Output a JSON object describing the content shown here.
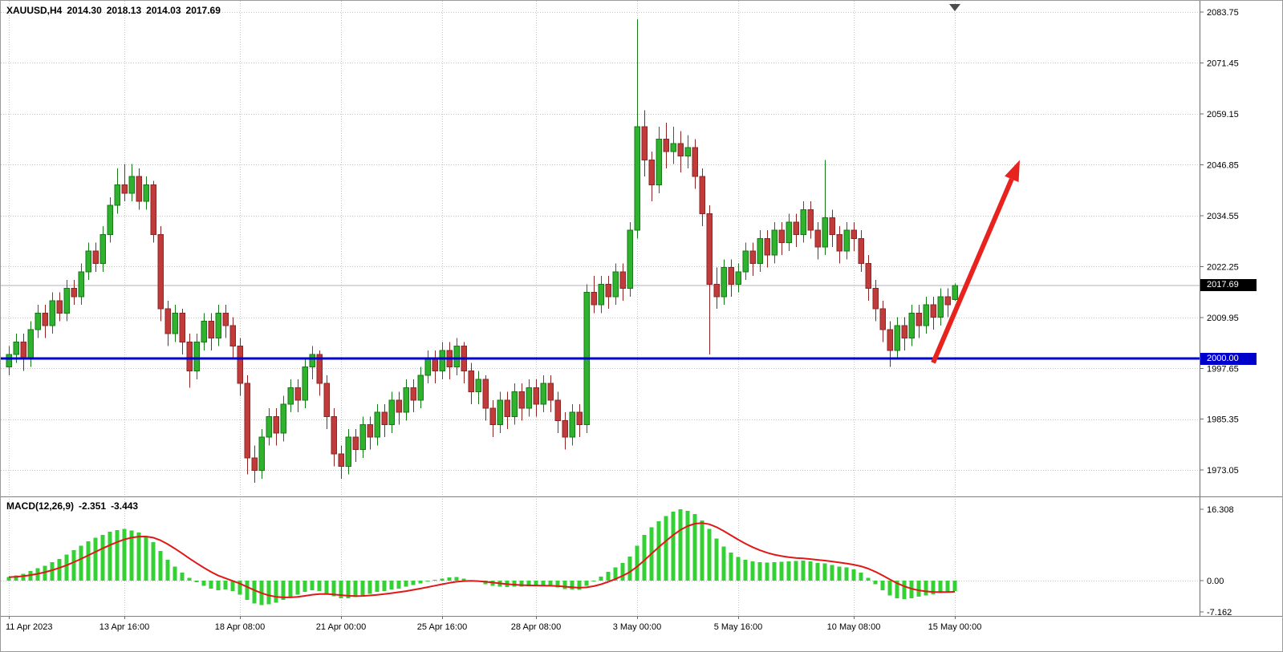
{
  "header": {
    "symbol_period": "XAUUSD,H4",
    "open": "2014.30",
    "high": "2018.13",
    "low": "2014.03",
    "close": "2017.69"
  },
  "macd": {
    "name": "MACD(12,26,9)",
    "value_main": "-2.351",
    "value_signal": "-3.443"
  },
  "price_axis": {
    "current_price": "2017.69",
    "hline_price": "2000.00"
  },
  "colors": {
    "bull": "#2fb32f",
    "bull_border": "#157a15",
    "bear": "#c13b3b",
    "bear_border": "#8e2424",
    "grid": "#c4c4c4",
    "axis_line": "#6b6b6b",
    "separator": "#808080",
    "support_line": "#0000cd",
    "arrow": "#e8231e",
    "macd_bar": "#33d133",
    "macd_signal": "#e01818",
    "badge_current_bg": "#000000",
    "badge_hline_bg": "#0000cd",
    "bid_line": "#b3b3bb",
    "shift_marker": "#4d4d4d",
    "text": "#000000"
  },
  "chart_data": {
    "type": "candlestick",
    "symbol": "XAUUSD",
    "timeframe": "H4",
    "title": "XAUUSD,H4 2014.30 2018.13 2014.03 2017.69",
    "current_ohlc": {
      "open": 2014.3,
      "high": 2018.13,
      "low": 2014.03,
      "close": 2017.69
    },
    "current_price_value": 2017.69,
    "support_line_price": 2000.0,
    "price_axis_top": 2083.75,
    "price_axis_step": 12.3,
    "price_ticks": [
      "2083.75",
      "2071.45",
      "2059.15",
      "2046.85",
      "2034.55",
      "2022.25",
      "2009.95",
      "1997.65",
      "1985.35",
      "1973.05"
    ],
    "time_labels": [
      "11 Apr 2023",
      "13 Apr 16:00",
      "18 Apr 08:00",
      "21 Apr 00:00",
      "25 Apr 16:00",
      "28 Apr 08:00",
      "3 May 00:00",
      "5 May 16:00",
      "10 May 08:00",
      "15 May 00:00"
    ],
    "time_label_indices": [
      0,
      16,
      32,
      46,
      60,
      73,
      87,
      101,
      117,
      131
    ],
    "macd_axis_ticks": [
      "16.308",
      "0.00",
      "-7.162"
    ],
    "macd_axis_values": [
      16.308,
      0,
      -7.162
    ],
    "macd_current": {
      "main": -2.351,
      "signal": -3.443
    },
    "arrow": {
      "from_index": 128,
      "from_price": 1999.0,
      "to_index": 140,
      "to_price": 2048.0
    },
    "ohlc": [
      [
        1998,
        2003,
        1996,
        2001
      ],
      [
        2001,
        2006,
        1999,
        2004
      ],
      [
        2004,
        2006,
        1997,
        2000
      ],
      [
        2000,
        2009,
        1998,
        2007
      ],
      [
        2007,
        2013,
        2005,
        2011
      ],
      [
        2011,
        2013,
        2005,
        2008
      ],
      [
        2008,
        2016,
        2006,
        2014
      ],
      [
        2014,
        2016,
        2009,
        2011
      ],
      [
        2011,
        2019,
        2009,
        2017
      ],
      [
        2017,
        2019,
        2013,
        2015
      ],
      [
        2015,
        2023,
        2013,
        2021
      ],
      [
        2021,
        2028,
        2019,
        2026
      ],
      [
        2026,
        2028,
        2021,
        2023
      ],
      [
        2023,
        2032,
        2021,
        2030
      ],
      [
        2030,
        2039,
        2028,
        2037
      ],
      [
        2037,
        2046,
        2035,
        2042
      ],
      [
        2042,
        2047,
        2038,
        2040
      ],
      [
        2040,
        2047,
        2038,
        2044
      ],
      [
        2044,
        2046,
        2036,
        2038
      ],
      [
        2038,
        2044,
        2036,
        2042
      ],
      [
        2042,
        2043,
        2028,
        2030
      ],
      [
        2030,
        2032,
        2009,
        2012
      ],
      [
        2012,
        2014,
        2003,
        2006
      ],
      [
        2006,
        2013,
        2004,
        2011
      ],
      [
        2011,
        2012,
        2001,
        2004
      ],
      [
        2004,
        2006,
        1993,
        1997
      ],
      [
        1997,
        2006,
        1995,
        2004
      ],
      [
        2004,
        2011,
        2002,
        2009
      ],
      [
        2009,
        2011,
        2002,
        2005
      ],
      [
        2005,
        2013,
        2003,
        2011
      ],
      [
        2011,
        2013,
        2005,
        2008
      ],
      [
        2008,
        2010,
        2000,
        2003
      ],
      [
        2003,
        2005,
        1991,
        1994
      ],
      [
        1994,
        1996,
        1972,
        1976
      ],
      [
        1976,
        1979,
        1970,
        1973
      ],
      [
        1973,
        1983,
        1971,
        1981
      ],
      [
        1981,
        1988,
        1979,
        1986
      ],
      [
        1986,
        1988,
        1979,
        1982
      ],
      [
        1982,
        1991,
        1980,
        1989
      ],
      [
        1989,
        1995,
        1987,
        1993
      ],
      [
        1993,
        1995,
        1987,
        1990
      ],
      [
        1990,
        2000,
        1988,
        1998
      ],
      [
        1998,
        2003,
        1995,
        2001
      ],
      [
        2001,
        2002,
        1991,
        1994
      ],
      [
        1994,
        1996,
        1983,
        1986
      ],
      [
        1986,
        1988,
        1974,
        1977
      ],
      [
        1977,
        1979,
        1971,
        1974
      ],
      [
        1974,
        1983,
        1972,
        1981
      ],
      [
        1981,
        1983,
        1975,
        1978
      ],
      [
        1978,
        1986,
        1976,
        1984
      ],
      [
        1984,
        1986,
        1978,
        1981
      ],
      [
        1981,
        1989,
        1979,
        1987
      ],
      [
        1987,
        1989,
        1981,
        1984
      ],
      [
        1984,
        1992,
        1982,
        1990
      ],
      [
        1990,
        1992,
        1984,
        1987
      ],
      [
        1987,
        1995,
        1985,
        1993
      ],
      [
        1993,
        1995,
        1987,
        1990
      ],
      [
        1990,
        1998,
        1988,
        1996
      ],
      [
        1996,
        2002,
        1994,
        2000
      ],
      [
        2000,
        2002,
        1994,
        1997
      ],
      [
        1997,
        2004,
        1995,
        2002
      ],
      [
        2002,
        2004,
        1995,
        1998
      ],
      [
        1998,
        2005,
        1996,
        2003
      ],
      [
        2003,
        2004,
        1994,
        1997
      ],
      [
        1997,
        1999,
        1989,
        1992
      ],
      [
        1992,
        1997,
        1989,
        1995
      ],
      [
        1995,
        1996,
        1985,
        1988
      ],
      [
        1988,
        1990,
        1981,
        1984
      ],
      [
        1984,
        1992,
        1982,
        1990
      ],
      [
        1990,
        1992,
        1983,
        1986
      ],
      [
        1986,
        1994,
        1984,
        1992
      ],
      [
        1992,
        1994,
        1985,
        1988
      ],
      [
        1988,
        1995,
        1986,
        1993
      ],
      [
        1993,
        1995,
        1986,
        1989
      ],
      [
        1989,
        1996,
        1987,
        1994
      ],
      [
        1994,
        1996,
        1987,
        1990
      ],
      [
        1990,
        1992,
        1982,
        1985
      ],
      [
        1985,
        1987,
        1978,
        1981
      ],
      [
        1981,
        1989,
        1979,
        1987
      ],
      [
        1987,
        1989,
        1981,
        1984
      ],
      [
        1984,
        2018,
        1982,
        2016
      ],
      [
        2016,
        2020,
        2011,
        2013
      ],
      [
        2013,
        2020,
        2011,
        2018
      ],
      [
        2018,
        2020,
        2012,
        2015
      ],
      [
        2015,
        2023,
        2013,
        2021
      ],
      [
        2021,
        2023,
        2014,
        2017
      ],
      [
        2017,
        2033,
        2015,
        2031
      ],
      [
        2031,
        2082,
        2029,
        2056
      ],
      [
        2056,
        2060,
        2044,
        2048
      ],
      [
        2048,
        2050,
        2038,
        2042
      ],
      [
        2042,
        2056,
        2040,
        2053
      ],
      [
        2053,
        2057,
        2046,
        2050
      ],
      [
        2050,
        2056,
        2047,
        2052
      ],
      [
        2052,
        2055,
        2045,
        2049
      ],
      [
        2049,
        2054,
        2046,
        2051
      ],
      [
        2051,
        2053,
        2041,
        2044
      ],
      [
        2044,
        2046,
        2032,
        2035
      ],
      [
        2035,
        2037,
        2001,
        2018
      ],
      [
        2018,
        2022,
        2012,
        2015
      ],
      [
        2015,
        2024,
        2013,
        2022
      ],
      [
        2022,
        2024,
        2015,
        2018
      ],
      [
        2018,
        2023,
        2016,
        2021
      ],
      [
        2021,
        2028,
        2019,
        2026
      ],
      [
        2026,
        2028,
        2020,
        2023
      ],
      [
        2023,
        2031,
        2021,
        2029
      ],
      [
        2029,
        2031,
        2022,
        2025
      ],
      [
        2025,
        2033,
        2023,
        2031
      ],
      [
        2031,
        2033,
        2025,
        2028
      ],
      [
        2028,
        2035,
        2026,
        2033
      ],
      [
        2033,
        2035,
        2027,
        2030
      ],
      [
        2030,
        2038,
        2028,
        2036
      ],
      [
        2036,
        2038,
        2029,
        2031
      ],
      [
        2031,
        2033,
        2024,
        2027
      ],
      [
        2027,
        2048,
        2025,
        2034
      ],
      [
        2034,
        2036,
        2027,
        2030
      ],
      [
        2030,
        2032,
        2023,
        2026
      ],
      [
        2026,
        2033,
        2024,
        2031
      ],
      [
        2031,
        2033,
        2026,
        2029
      ],
      [
        2029,
        2031,
        2021,
        2023
      ],
      [
        2023,
        2025,
        2014,
        2017
      ],
      [
        2017,
        2019,
        2009,
        2012
      ],
      [
        2012,
        2014,
        2004,
        2007
      ],
      [
        2007,
        2009,
        1998,
        2002
      ],
      [
        2002,
        2010,
        2000,
        2008
      ],
      [
        2008,
        2010,
        2002,
        2005
      ],
      [
        2005,
        2013,
        2003,
        2011
      ],
      [
        2011,
        2013,
        2005,
        2008
      ],
      [
        2008,
        2015,
        2006,
        2013
      ],
      [
        2013,
        2015,
        2007,
        2010
      ],
      [
        2010,
        2017,
        2008,
        2015
      ],
      [
        2015,
        2017,
        2010,
        2013
      ],
      [
        2014.3,
        2018.13,
        2014.03,
        2017.69
      ]
    ],
    "macd_histogram": [
      0.8,
      1.2,
      1.6,
      2.2,
      2.8,
      3.4,
      4.2,
      5.0,
      6.0,
      7.0,
      8.0,
      9.0,
      9.8,
      10.5,
      11.2,
      11.6,
      11.8,
      11.5,
      11.0,
      10.2,
      8.8,
      6.8,
      4.8,
      3.2,
      1.8,
      0.6,
      -0.4,
      -1.2,
      -1.8,
      -2.2,
      -2.0,
      -2.4,
      -3.2,
      -4.4,
      -5.2,
      -5.6,
      -5.4,
      -5.0,
      -4.4,
      -3.8,
      -3.2,
      -2.6,
      -2.2,
      -2.4,
      -3.0,
      -3.6,
      -4.0,
      -4.0,
      -3.8,
      -3.4,
      -3.0,
      -2.6,
      -2.4,
      -2.0,
      -1.8,
      -1.4,
      -1.0,
      -0.6,
      -0.2,
      0.2,
      0.5,
      0.7,
      0.8,
      0.5,
      0.1,
      -0.3,
      -0.8,
      -1.2,
      -1.4,
      -1.5,
      -1.4,
      -1.4,
      -1.3,
      -1.3,
      -1.2,
      -1.3,
      -1.6,
      -1.9,
      -2.0,
      -2.1,
      -1.2,
      -0.2,
      0.9,
      2.0,
      3.0,
      4.0,
      5.5,
      8.0,
      10.5,
      12.2,
      13.6,
      14.8,
      15.8,
      16.3,
      16.0,
      15.2,
      13.8,
      11.8,
      9.6,
      7.8,
      6.4,
      5.4,
      4.8,
      4.4,
      4.2,
      4.1,
      4.2,
      4.3,
      4.4,
      4.5,
      4.6,
      4.4,
      4.0,
      3.9,
      3.6,
      3.2,
      3.0,
      2.6,
      1.8,
      0.6,
      -0.8,
      -2.2,
      -3.4,
      -4.0,
      -4.2,
      -4.0,
      -3.7,
      -3.4,
      -3.1,
      -2.8,
      -2.55,
      -2.351
    ],
    "legend_position": "none",
    "grid": true
  }
}
